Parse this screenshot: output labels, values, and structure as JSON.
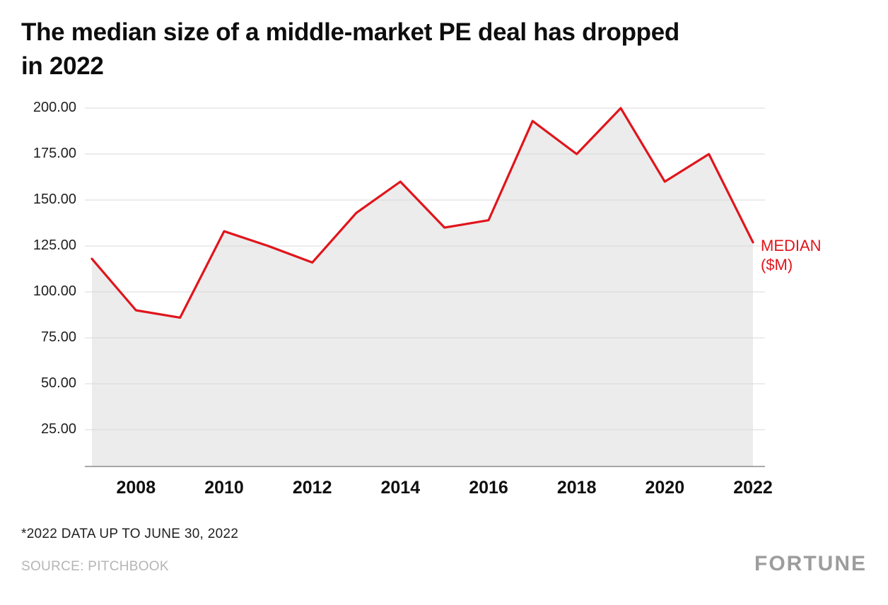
{
  "header": {
    "title_line1": "The median size of a middle-market PE deal has dropped",
    "title_line2": "in 2022"
  },
  "chart_data": {
    "type": "line",
    "area": true,
    "title": "The median size of a middle-market PE deal has dropped in 2022",
    "x": [
      2007,
      2008,
      2009,
      2010,
      2011,
      2012,
      2013,
      2014,
      2015,
      2016,
      2017,
      2018,
      2019,
      2020,
      2021,
      2022
    ],
    "series": [
      {
        "name": "MEDIAN ($M)",
        "values": [
          118,
          90,
          86,
          133,
          125,
          116,
          143,
          160,
          135,
          139,
          193,
          175,
          200,
          160,
          175,
          127
        ]
      }
    ],
    "ylim": [
      5,
      205
    ],
    "y_ticks": [
      25,
      50,
      75,
      100,
      125,
      150,
      175,
      200
    ],
    "y_tick_labels": [
      "25.00",
      "50.00",
      "75.00",
      "100.00",
      "125.00",
      "150.00",
      "175.00",
      "200.00"
    ],
    "x_tick_labels": [
      "2008",
      "2010",
      "2012",
      "2014",
      "2016",
      "2018",
      "2020",
      "2022"
    ],
    "grid": "horizontal",
    "legend_position": "right of line end",
    "line_color": "#e0151c",
    "area_color": "#ececec",
    "grid_color": "#d9d9d9",
    "axis_color": "#8c8c8c"
  },
  "annotations": {
    "series_label": "MEDIAN ($M)"
  },
  "footer": {
    "footnote": "*2022 DATA UP TO JUNE 30, 2022",
    "source": "SOURCE: PITCHBOOK",
    "brand": "FORTUNE"
  }
}
